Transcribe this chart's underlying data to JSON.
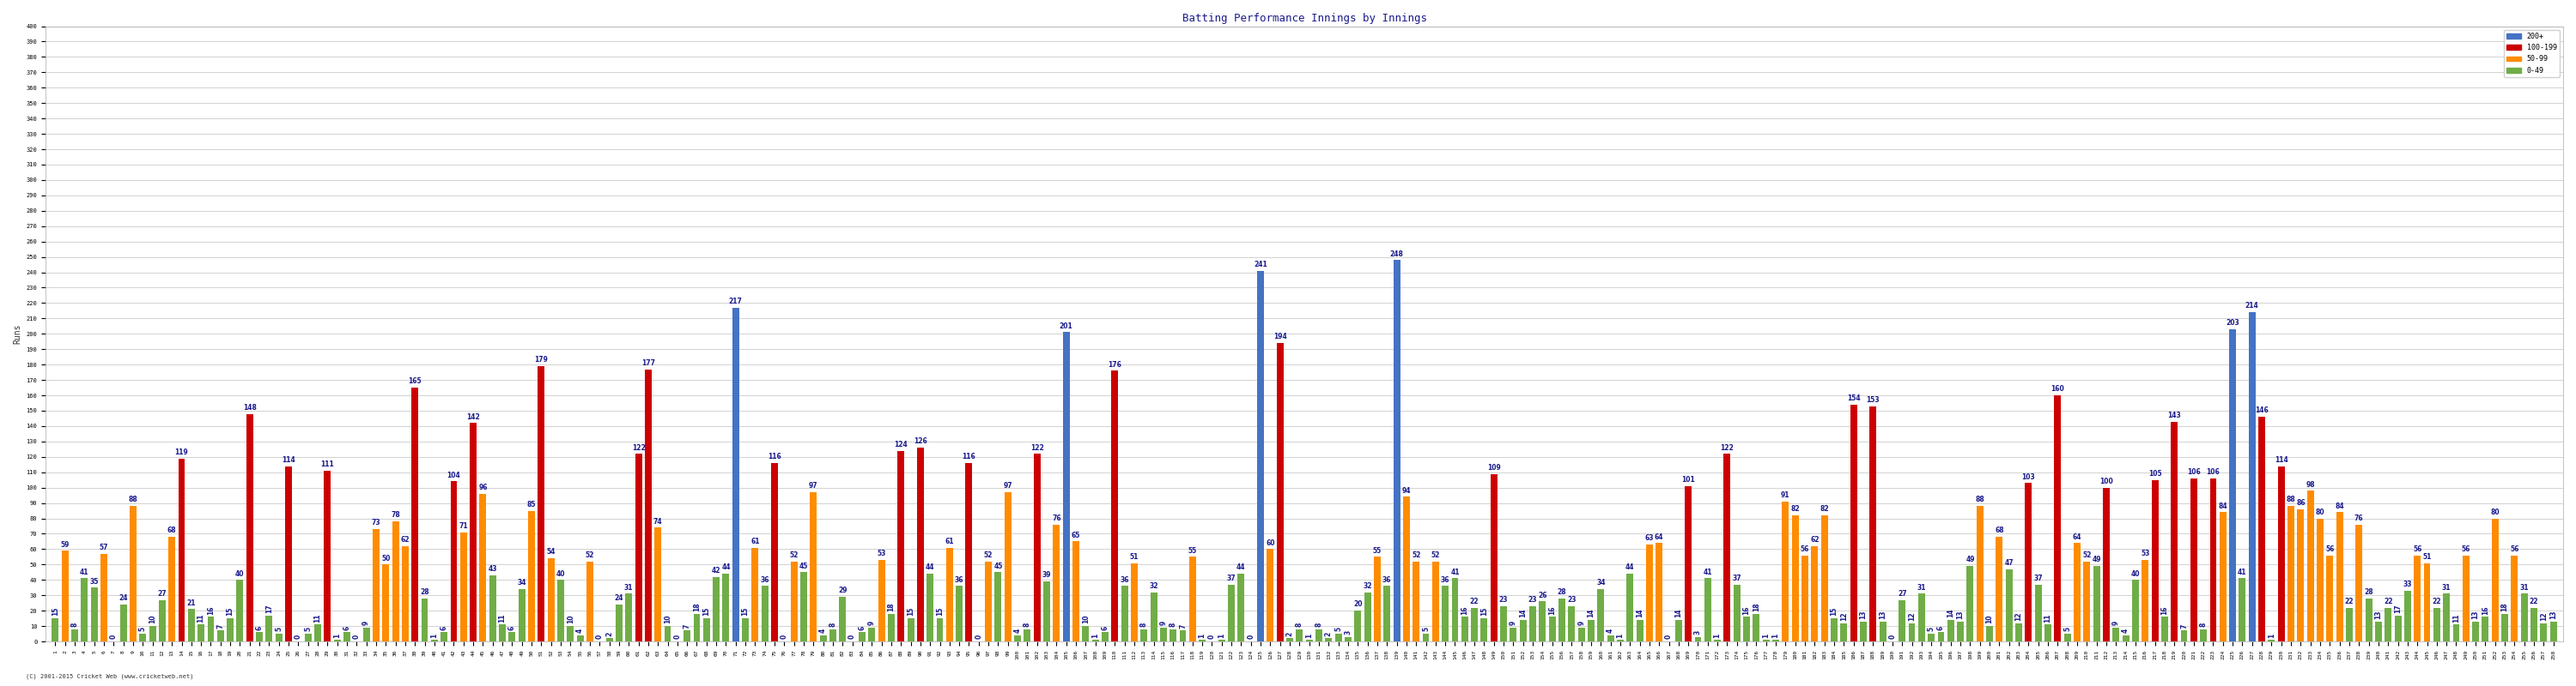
{
  "title": "Batting Performance Innings by Innings",
  "ylabel": "Runs",
  "copyright": "(C) 2001-2015 Cricket Web (www.cricketweb.net)",
  "ylim": [
    0,
    400
  ],
  "yticks": [
    0,
    10,
    20,
    30,
    40,
    50,
    60,
    70,
    80,
    90,
    100,
    110,
    120,
    130,
    140,
    150,
    160,
    170,
    180,
    190,
    200,
    210,
    220,
    230,
    240,
    250,
    260,
    270,
    280,
    290,
    300,
    310,
    320,
    330,
    340,
    350,
    360,
    370,
    380,
    390,
    400
  ],
  "bg_color": "#f0f0f0",
  "bar_width": 0.7,
  "scores": [
    15,
    59,
    8,
    41,
    35,
    57,
    0,
    24,
    88,
    5,
    10,
    27,
    68,
    119,
    21,
    11,
    16,
    7,
    15,
    40,
    148,
    6,
    17,
    5,
    114,
    0,
    5,
    11,
    111,
    1,
    6,
    0,
    9,
    73,
    50,
    78,
    62,
    165,
    28,
    1,
    6,
    104,
    71,
    142,
    96,
    43,
    11,
    6,
    34,
    85,
    179,
    54,
    40,
    10,
    4,
    52,
    0,
    2,
    24,
    31,
    122,
    177,
    74,
    10,
    0,
    7,
    18,
    15,
    42,
    44,
    217,
    15,
    61,
    36,
    116,
    0,
    52,
    45,
    97,
    4,
    8,
    29,
    0,
    6,
    9,
    53,
    18,
    124,
    15,
    126,
    44,
    15,
    61,
    36,
    116,
    0,
    52,
    45,
    97,
    4,
    8,
    122,
    39,
    76,
    201,
    65,
    10,
    1,
    6,
    176,
    36,
    51,
    8,
    32,
    9,
    8,
    7,
    55,
    1,
    0,
    1,
    37,
    44,
    0,
    241,
    60,
    194,
    2,
    8,
    1,
    8,
    2,
    5,
    3,
    20,
    32,
    55,
    36,
    248,
    94,
    52,
    5,
    52,
    36,
    41,
    16,
    22,
    15,
    109,
    23,
    9,
    14,
    23,
    26,
    16,
    28,
    23,
    9,
    14,
    34,
    4,
    1,
    44,
    14,
    63,
    64,
    0,
    14,
    101,
    3,
    41,
    1,
    122,
    37,
    16,
    18,
    1,
    1,
    91,
    82,
    56,
    62,
    82,
    15,
    12,
    154,
    13,
    153,
    13,
    0,
    27,
    12,
    31,
    5,
    6,
    14,
    13,
    49,
    88,
    10,
    68,
    47,
    12,
    103,
    37,
    11,
    160,
    5,
    64,
    52,
    49,
    100,
    9,
    4,
    40,
    53,
    105,
    16,
    143,
    7,
    106,
    8,
    106,
    84,
    203,
    41,
    214,
    146,
    1,
    114,
    88,
    86,
    98,
    80,
    56,
    84,
    22,
    76,
    28,
    13,
    22,
    17,
    33,
    56,
    51,
    22,
    31,
    11,
    56,
    13,
    16,
    80,
    18,
    56,
    31,
    22,
    12,
    13
  ],
  "innings_labels_step": 5,
  "color_200plus": "#4472c4",
  "color_100_199": "#cc0000",
  "color_50_99": "#ff8c00",
  "color_0_49": "#70ad47",
  "label_fontsize": 5.5,
  "label_color": "#1a1a8c",
  "tick_fontsize": 5,
  "axis_label_fontsize": 7,
  "title_fontsize": 9
}
